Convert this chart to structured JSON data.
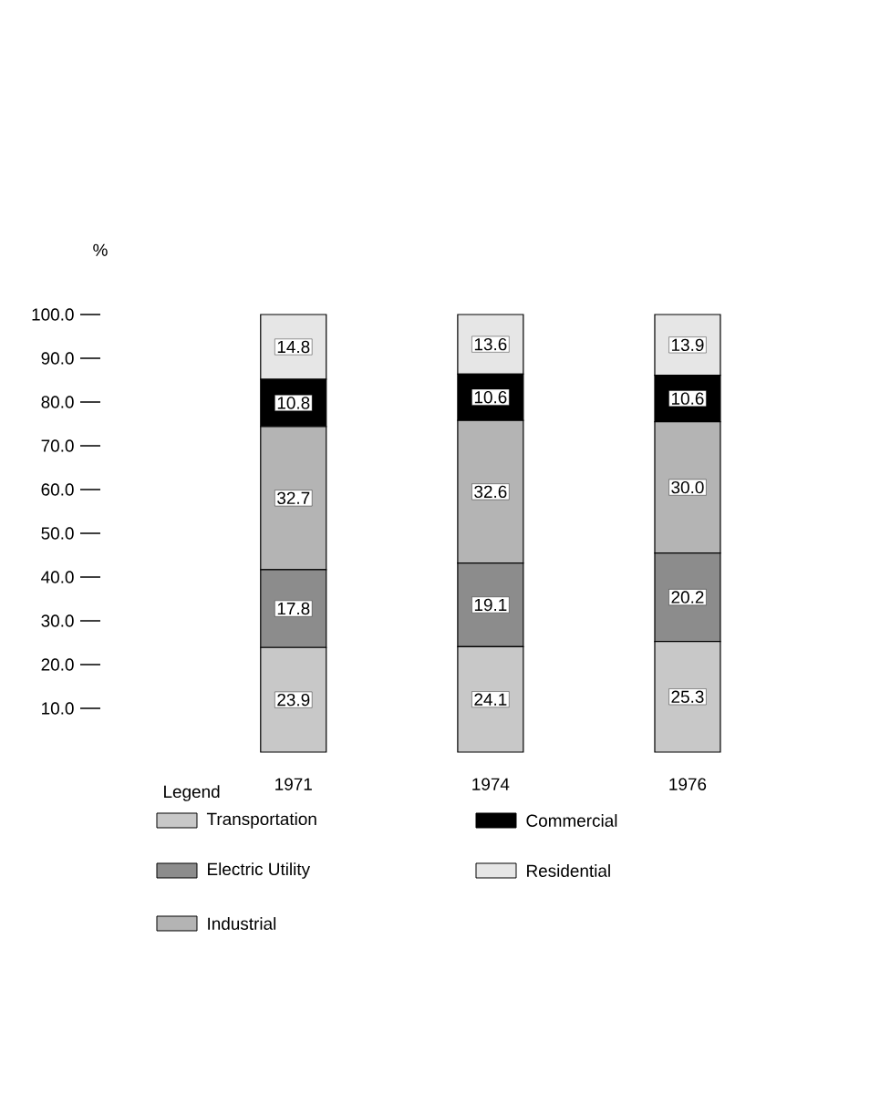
{
  "chart_data": {
    "type": "bar",
    "stacked": true,
    "ylabel": "%",
    "legend_title": "Legend",
    "legend": "bottom",
    "categories": [
      "1971",
      "1974",
      "1976"
    ],
    "ylim": [
      0,
      100
    ],
    "yticks": [
      {
        "value": 10,
        "label": "10.0"
      },
      {
        "value": 20,
        "label": "20.0"
      },
      {
        "value": 30,
        "label": "30.0"
      },
      {
        "value": 40,
        "label": "40.0"
      },
      {
        "value": 50,
        "label": "50.0"
      },
      {
        "value": 60,
        "label": "60.0"
      },
      {
        "value": 70,
        "label": "70.0"
      },
      {
        "value": 80,
        "label": "80.0"
      },
      {
        "value": 90,
        "label": "90.0"
      },
      {
        "value": 100,
        "label": "100.0"
      }
    ],
    "series": [
      {
        "name": "Transportation",
        "color": "#c8c8c8",
        "values": [
          23.9,
          24.1,
          25.3
        ],
        "value_labels": [
          "23.9",
          "24.1",
          "25.3"
        ]
      },
      {
        "name": "Electric Utility",
        "color": "#8c8c8c",
        "values": [
          17.8,
          19.1,
          20.2
        ],
        "value_labels": [
          "17.8",
          "19.1",
          "20.2"
        ]
      },
      {
        "name": "Industrial",
        "color": "#b4b4b4",
        "values": [
          32.7,
          32.6,
          30.0
        ],
        "value_labels": [
          "32.7",
          "32.6",
          "30.0"
        ]
      },
      {
        "name": "Commercial",
        "color": "#000000",
        "values": [
          10.8,
          10.6,
          10.6
        ],
        "value_labels": [
          "10.8",
          "10.6",
          "10.6"
        ]
      },
      {
        "name": "Residential",
        "color": "#e6e6e6",
        "values": [
          14.8,
          13.6,
          13.9
        ],
        "value_labels": [
          "14.8",
          "13.6",
          "13.9"
        ]
      }
    ]
  }
}
